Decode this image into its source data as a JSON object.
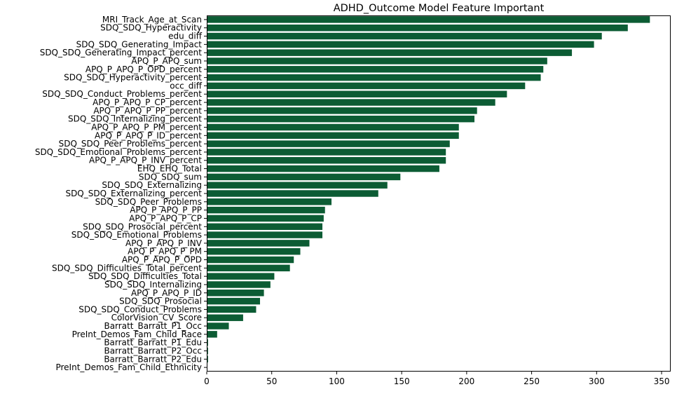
{
  "chart_data": {
    "type": "bar",
    "orientation": "horizontal",
    "title": "ADHD_Outcome Model Feature Important",
    "xlabel": "",
    "ylabel": "",
    "xlim": [
      0,
      357
    ],
    "xticks": [
      0,
      50,
      100,
      150,
      200,
      250,
      300,
      350
    ],
    "grid": false,
    "bar_color": "#0c5c34",
    "categories": [
      "MRI_Track_Age_at_Scan",
      "SDQ_SDQ_Hyperactivity",
      "edu_diff",
      "SDQ_SDQ_Generating_Impact",
      "SDQ_SDQ_Generating_Impact_percent",
      "APQ_P_APQ_sum",
      "APQ_P_APQ_P_OPD_percent",
      "SDQ_SDQ_Hyperactivity_percent",
      "occ_diff",
      "SDQ_SDQ_Conduct_Problems_percent",
      "APQ_P_APQ_P_CP_percent",
      "APQ_P_APQ_P_PP_percent",
      "SDQ_SDQ_Internalizing_percent",
      "APQ_P_APQ_P_PM_percent",
      "APQ_P_APQ_P_ID_percent",
      "SDQ_SDQ_Peer_Problems_percent",
      "SDQ_SDQ_Emotional_Problems_percent",
      "APQ_P_APQ_P_INV_percent",
      "EHQ_EHQ_Total",
      "SDQ_SDQ_sum",
      "SDQ_SDQ_Externalizing",
      "SDQ_SDQ_Externalizing_percent",
      "SDQ_SDQ_Peer_Problems",
      "APQ_P_APQ_P_PP",
      "APQ_P_APQ_P_CP",
      "SDQ_SDQ_Prosocial_percent",
      "SDQ_SDQ_Emotional_Problems",
      "APQ_P_APQ_P_INV",
      "APQ_P_APQ_P_PM",
      "APQ_P_APQ_P_OPD",
      "SDQ_SDQ_Difficulties_Total_percent",
      "SDQ_SDQ_Difficulties_Total",
      "SDQ_SDQ_Internalizing",
      "APQ_P_APQ_P_ID",
      "SDQ_SDQ_Prosocial",
      "SDQ_SDQ_Conduct_Problems",
      "ColorVision_CV_Score",
      "Barratt_Barratt_P1_Occ",
      "PreInt_Demos_Fam_Child_Race",
      "Barratt_Barratt_P1_Edu",
      "Barratt_Barratt_P2_Occ",
      "Barratt_Barratt_P2_Edu",
      "PreInt_Demos_Fam_Child_Ethnicity"
    ],
    "values": [
      341,
      324,
      304,
      298,
      281,
      262,
      259,
      257,
      245,
      231,
      222,
      208,
      206,
      194,
      194,
      187,
      184,
      184,
      179,
      149,
      139,
      132,
      96,
      91,
      90,
      89,
      89,
      79,
      72,
      67,
      64,
      52,
      49,
      44,
      41,
      38,
      28,
      17,
      8,
      1,
      1,
      1,
      0
    ]
  }
}
